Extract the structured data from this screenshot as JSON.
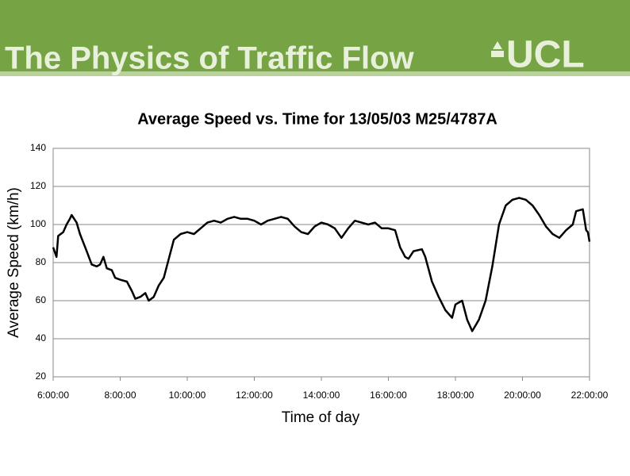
{
  "header": {
    "title": "The Physics of Traffic Flow",
    "logo": "UCL"
  },
  "chart_data": {
    "type": "line",
    "title": "Average Speed vs. Time for 13/05/03 M25/4787A",
    "x_label": "Time of day",
    "y_label": "Average Speed (km/h)",
    "xlim": [
      6,
      22
    ],
    "xticks": [
      {
        "value": 6,
        "label": "6:00:00"
      },
      {
        "value": 8,
        "label": "8:00:00"
      },
      {
        "value": 10,
        "label": "10:00:00"
      },
      {
        "value": 12,
        "label": "12:00:00"
      },
      {
        "value": 14,
        "label": "14:00:00"
      },
      {
        "value": 16,
        "label": "16:00:00"
      },
      {
        "value": 18,
        "label": "18:00:00"
      },
      {
        "value": 20,
        "label": "20:00:00"
      },
      {
        "value": 22,
        "label": "22:00:00"
      }
    ],
    "ylim": [
      20,
      140
    ],
    "yticks": [
      20,
      40,
      60,
      80,
      100,
      120,
      140
    ],
    "grid": true,
    "x": [
      6.0,
      6.1,
      6.15,
      6.3,
      6.4,
      6.5,
      6.55,
      6.7,
      6.8,
      7.0,
      7.15,
      7.3,
      7.4,
      7.5,
      7.6,
      7.75,
      7.85,
      8.0,
      8.2,
      8.35,
      8.45,
      8.6,
      8.75,
      8.85,
      9.0,
      9.15,
      9.3,
      9.45,
      9.6,
      9.8,
      10.0,
      10.2,
      10.4,
      10.6,
      10.8,
      11.0,
      11.2,
      11.4,
      11.6,
      11.8,
      12.0,
      12.2,
      12.4,
      12.6,
      12.8,
      13.0,
      13.2,
      13.4,
      13.6,
      13.8,
      14.0,
      14.2,
      14.4,
      14.6,
      14.8,
      15.0,
      15.2,
      15.4,
      15.6,
      15.8,
      16.0,
      16.2,
      16.35,
      16.5,
      16.6,
      16.75,
      17.0,
      17.1,
      17.3,
      17.5,
      17.7,
      17.9,
      18.0,
      18.2,
      18.35,
      18.5,
      18.7,
      18.9,
      19.1,
      19.3,
      19.5,
      19.7,
      19.9,
      20.1,
      20.3,
      20.5,
      20.7,
      20.9,
      21.0,
      21.1,
      21.3,
      21.5,
      21.6,
      21.8,
      21.9,
      21.95,
      22.0
    ],
    "series": [
      {
        "color": "#000000",
        "values": [
          88,
          83,
          94,
          96,
          100,
          103,
          105,
          101,
          95,
          86,
          79,
          78,
          79,
          83,
          77,
          76,
          72,
          71,
          70,
          65,
          61,
          62,
          64,
          60,
          62,
          68,
          72,
          82,
          92,
          95,
          96,
          95,
          98,
          101,
          102,
          101,
          103,
          104,
          103,
          103,
          102,
          100,
          102,
          103,
          104,
          103,
          99,
          96,
          95,
          99,
          101,
          100,
          98,
          93,
          98,
          102,
          101,
          100,
          101,
          98,
          98,
          97,
          88,
          83,
          82,
          86,
          87,
          83,
          70,
          62,
          55,
          51,
          58,
          60,
          50,
          44,
          50,
          60,
          78,
          100,
          110,
          113,
          114,
          113,
          110,
          105,
          99,
          95,
          94,
          93,
          97,
          100,
          107,
          108,
          97,
          96,
          91
        ]
      }
    ]
  }
}
